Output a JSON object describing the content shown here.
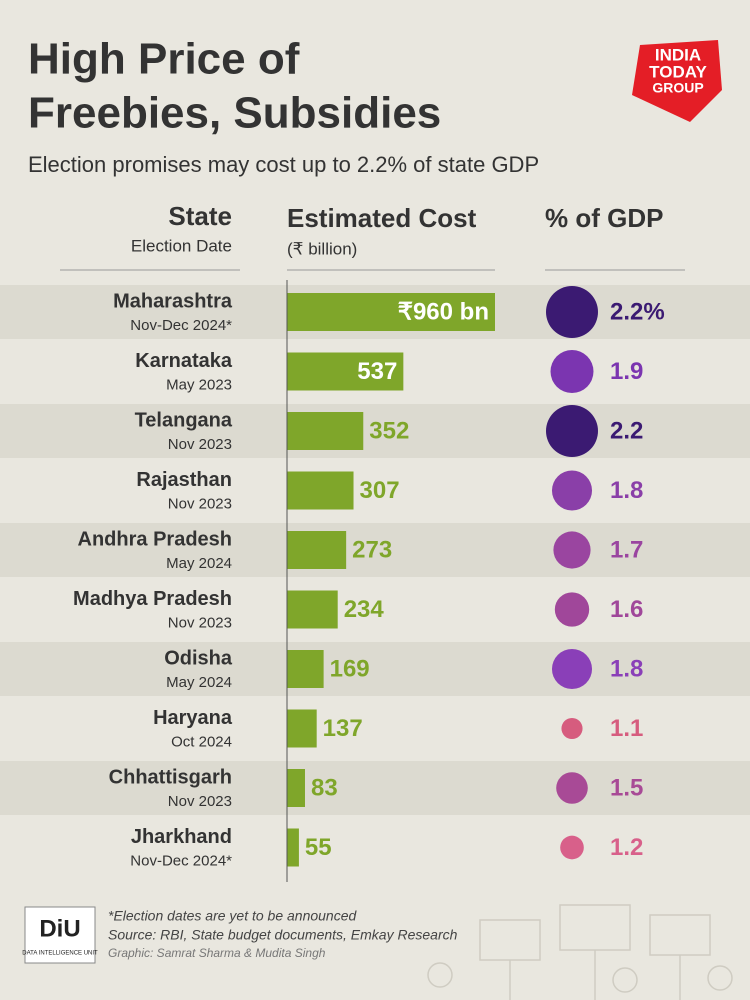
{
  "chart_data": {
    "type": "bar",
    "title": [
      "High Price of",
      "Freebies, Subsidies"
    ],
    "subtitle": "Election promises may cost up to 2.2% of state GDP",
    "headers": {
      "state": "State",
      "date": "Election Date",
      "cost": "Estimated Cost",
      "cost_unit": "(₹ billion)",
      "gdp": "% of GDP"
    },
    "categories": [
      "Maharashtra",
      "Karnataka",
      "Telangana",
      "Rajasthan",
      "Andhra Pradesh",
      "Madhya Pradesh",
      "Odisha",
      "Haryana",
      "Chhattisgarh",
      "Jharkhand"
    ],
    "dates": [
      "Nov-Dec 2024*",
      "May 2023",
      "Nov 2023",
      "Nov 2023",
      "May 2024",
      "Nov 2023",
      "May 2024",
      "Oct 2024",
      "Nov 2023",
      "Nov-Dec 2024*"
    ],
    "values": [
      960,
      537,
      352,
      307,
      273,
      234,
      169,
      137,
      83,
      55
    ],
    "value_labels": [
      "₹960 bn",
      "537",
      "352",
      "307",
      "273",
      "234",
      "169",
      "137",
      "83",
      "55"
    ],
    "color": "#7fa62a",
    "gdp": {
      "values": [
        2.2,
        1.9,
        2.2,
        1.8,
        1.7,
        1.6,
        1.8,
        1.1,
        1.5,
        1.2
      ],
      "value_labels": [
        "2.2%",
        "1.9",
        "2.2",
        "1.8",
        "1.7",
        "1.6",
        "1.8",
        "1.1",
        "1.5",
        "1.2"
      ],
      "colors": [
        "#3b1a72",
        "#7b35b0",
        "#3b1a72",
        "#8a3fa8",
        "#9a45a0",
        "#a0479a",
        "#8a3fb8",
        "#d65c7e",
        "#a84a96",
        "#d8608a"
      ]
    },
    "footnote": "*Election dates are yet to be announced",
    "source": "Source: RBI, State budget documents, Emkay Research",
    "credit": "Graphic: Samrat Sharma & Mudita Singh",
    "logo": [
      "INDIA",
      "TODAY",
      "GROUP"
    ],
    "unit_logo": "DiU",
    "unit_logo_sub": "DATA INTELLIGENCE UNIT"
  }
}
